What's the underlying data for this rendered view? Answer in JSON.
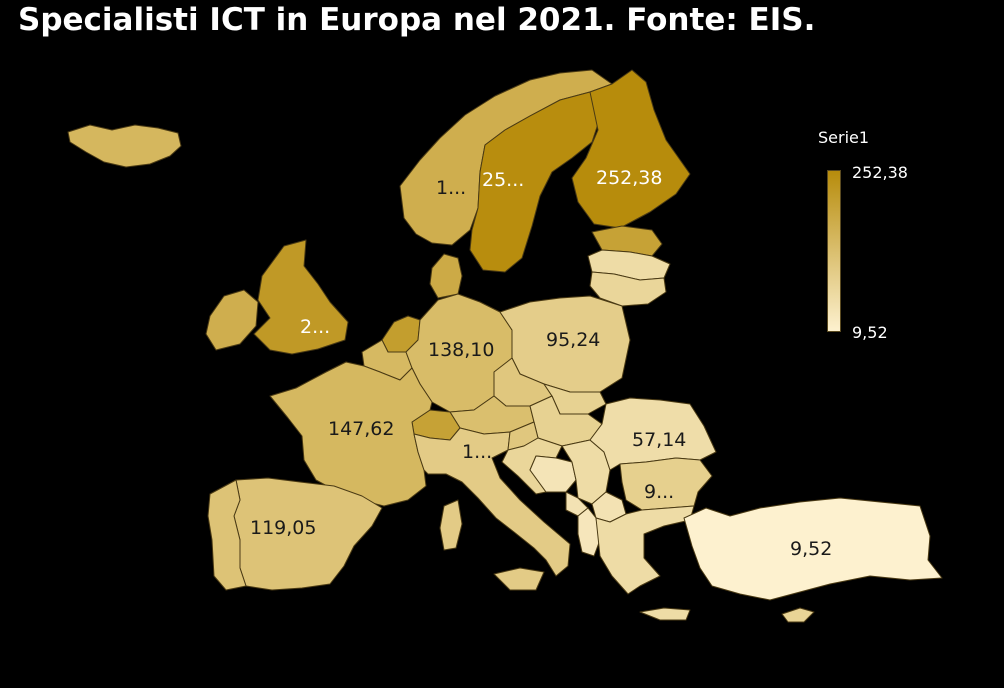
{
  "title": "Specialisti ICT in Europa nel 2021. Fonte: EIS.",
  "legend": {
    "title": "Serie1",
    "max_label": "252,38",
    "min_label": "9,52",
    "max_value": 252.38,
    "min_value": 9.52,
    "color_high": "#b78c0c",
    "color_low": "#fdf1cf"
  },
  "regions": [
    {
      "name": "Iceland",
      "value": 150
    },
    {
      "name": "Norway",
      "value": 170,
      "label": "1..."
    },
    {
      "name": "Sweden",
      "value": 250,
      "label": "25..."
    },
    {
      "name": "Finland",
      "value": 252.38,
      "label": "252,38"
    },
    {
      "name": "Estonia",
      "value": 200
    },
    {
      "name": "Latvia",
      "value": 60
    },
    {
      "name": "Lithuania",
      "value": 75
    },
    {
      "name": "Denmark",
      "value": 180
    },
    {
      "name": "United Kingdom",
      "value": 220,
      "label": "2..."
    },
    {
      "name": "Ireland",
      "value": 170
    },
    {
      "name": "Netherlands",
      "value": 210
    },
    {
      "name": "Belgium",
      "value": 145
    },
    {
      "name": "Germany",
      "value": 138.1,
      "label": "138,10"
    },
    {
      "name": "Poland",
      "value": 95.24,
      "label": "95,24"
    },
    {
      "name": "Czechia",
      "value": 110
    },
    {
      "name": "Slovakia",
      "value": 85
    },
    {
      "name": "Austria",
      "value": 130
    },
    {
      "name": "Hungary",
      "value": 85
    },
    {
      "name": "Switzerland",
      "value": 200
    },
    {
      "name": "France",
      "value": 147.62,
      "label": "147,62"
    },
    {
      "name": "Italy",
      "value": 100,
      "label": "1..."
    },
    {
      "name": "Slovenia",
      "value": 110
    },
    {
      "name": "Croatia",
      "value": 75
    },
    {
      "name": "Bosnia",
      "value": 40
    },
    {
      "name": "Serbia",
      "value": 60
    },
    {
      "name": "Romania",
      "value": 57.14,
      "label": "57,14"
    },
    {
      "name": "Bulgaria",
      "value": 90,
      "label": "9..."
    },
    {
      "name": "North Macedonia",
      "value": 45
    },
    {
      "name": "Montenegro",
      "value": 45
    },
    {
      "name": "Albania",
      "value": 35
    },
    {
      "name": "Greece",
      "value": 60
    },
    {
      "name": "Turkey",
      "value": 9.52,
      "label": "9,52"
    },
    {
      "name": "Spain",
      "value": 119.05,
      "label": "119,05"
    },
    {
      "name": "Portugal",
      "value": 120
    },
    {
      "name": "Cyprus",
      "value": 80
    }
  ]
}
